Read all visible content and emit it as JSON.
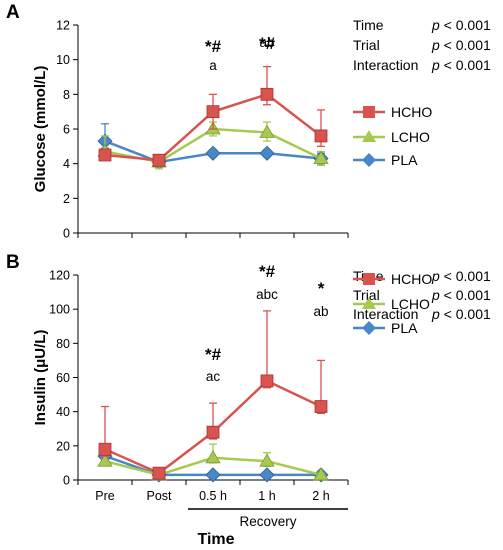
{
  "colors": {
    "HCHO": "#d9534f",
    "LCHO": "#a6c94f",
    "PLA": "#4a87c6",
    "axis": "#000000"
  },
  "legend_markers": {
    "HCHO": "square",
    "LCHO": "triangle",
    "PLA": "diamond"
  },
  "common": {
    "categories": [
      "Pre",
      "Post",
      "0.5 h",
      "1 h",
      "2 h"
    ],
    "xlabel": "Time",
    "recovery_label": "Recovery"
  },
  "chart_data": [
    {
      "type": "line",
      "panel": "A",
      "ylabel": "Glucose (mmol/L)",
      "ylim": [
        0,
        12
      ],
      "yticks": [
        0,
        2,
        4,
        6,
        8,
        10,
        12
      ],
      "categories": [
        "Pre",
        "Post",
        "0.5 h",
        "1 h",
        "2 h"
      ],
      "series": [
        {
          "name": "HCHO",
          "values": [
            4.5,
            4.2,
            7.0,
            8.0,
            5.6
          ],
          "err_up": [
            0.2,
            0.3,
            1.0,
            1.6,
            1.5
          ],
          "err_down": [
            0.2,
            0.3,
            1.0,
            0.6,
            0.6
          ]
        },
        {
          "name": "LCHO",
          "values": [
            4.7,
            4.1,
            6.0,
            5.8,
            4.3
          ],
          "err_up": [
            0.9,
            0.3,
            0.4,
            0.6,
            0.4
          ],
          "err_down": [
            0.4,
            0.4,
            0.4,
            0.5,
            0.4
          ]
        },
        {
          "name": "PLA",
          "values": [
            5.3,
            4.1,
            4.6,
            4.6,
            4.3
          ],
          "err_up": [
            1.0,
            0.3,
            0.2,
            0.2,
            0.3
          ],
          "err_down": [
            0.4,
            0.3,
            0.2,
            0.2,
            0.3
          ]
        }
      ],
      "annotations": [
        {
          "x": "0.5 h",
          "line1": "*#",
          "line2": "a"
        },
        {
          "x": "1 h",
          "line1": "*#",
          "line2": "ab"
        }
      ],
      "stats": [
        {
          "label": "Time",
          "p": "p",
          "value": " < 0.001"
        },
        {
          "label": "Trial",
          "p": "p",
          "value": " < 0.001"
        },
        {
          "label": "Interaction",
          "p": "p",
          "value": " < 0.001"
        }
      ]
    },
    {
      "type": "line",
      "panel": "B",
      "ylabel": "Insulin (μU/L)",
      "ylim": [
        0,
        120
      ],
      "yticks": [
        0,
        20,
        40,
        60,
        80,
        100,
        120
      ],
      "categories": [
        "Pre",
        "Post",
        "0.5 h",
        "1 h",
        "2 h"
      ],
      "series": [
        {
          "name": "HCHO",
          "values": [
            18,
            4,
            28,
            58,
            43
          ],
          "err_up": [
            25,
            3,
            17,
            41,
            27
          ],
          "err_down": [
            4,
            2,
            4,
            4,
            4
          ]
        },
        {
          "name": "LCHO",
          "values": [
            11,
            3,
            13,
            11,
            3
          ],
          "err_up": [
            3,
            1,
            8,
            5,
            1
          ],
          "err_down": [
            2,
            1,
            3,
            3,
            1
          ]
        },
        {
          "name": "PLA",
          "values": [
            14,
            3,
            3,
            3,
            3
          ],
          "err_up": [
            4,
            1,
            1,
            1,
            1
          ],
          "err_down": [
            3,
            1,
            1,
            1,
            1
          ]
        }
      ],
      "annotations": [
        {
          "x": "0.5 h",
          "line1": "*#",
          "line2": "ac"
        },
        {
          "x": "1 h",
          "line1": "*#",
          "line2": "abc"
        },
        {
          "x": "2 h",
          "line1": "*",
          "line2": "ab"
        }
      ],
      "stats": [
        {
          "label": "Time",
          "p": "p",
          "value": " < 0.001"
        },
        {
          "label": "Trial",
          "p": "p",
          "value": " < 0.001"
        },
        {
          "label": "Interaction",
          "p": "p",
          "value": " < 0.001"
        }
      ]
    }
  ]
}
